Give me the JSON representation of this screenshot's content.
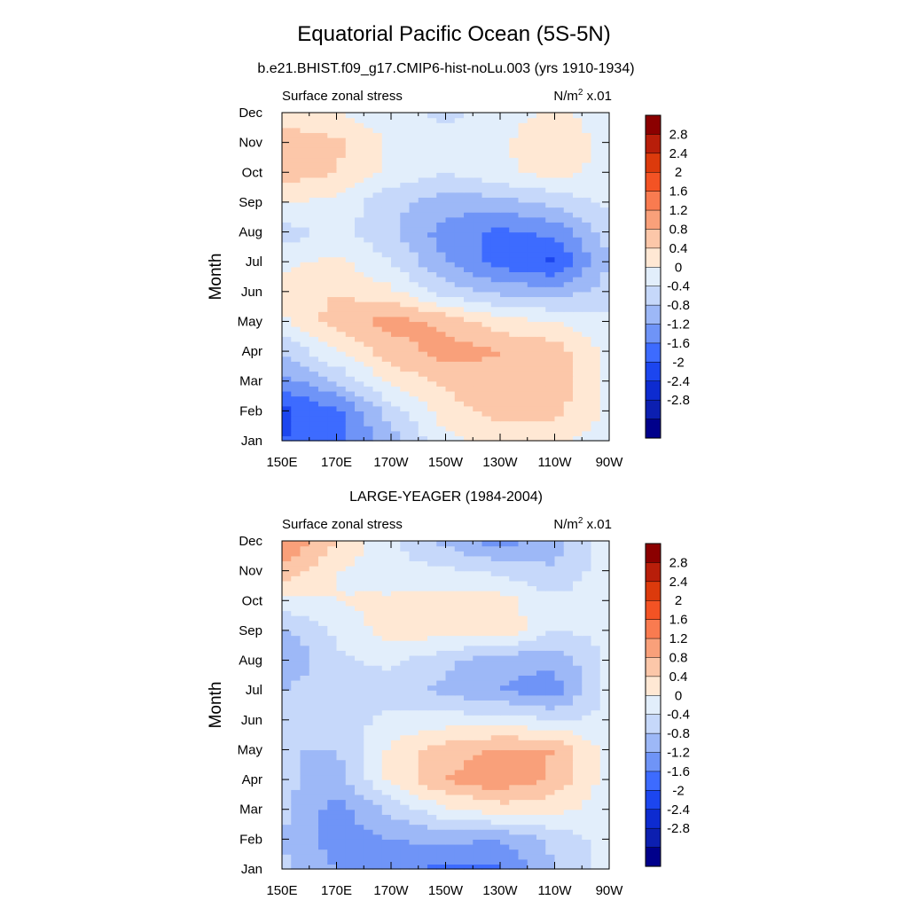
{
  "page": {
    "title": "Equatorial Pacific Ocean (5S-5N)"
  },
  "chart_data": [
    {
      "type": "heatmap",
      "title": "b.e21.BHIST.f09_g17.CMIP6-hist-noLu.003 (yrs 1910-1934)",
      "left_label": "Surface zonal stress",
      "units": "N/m",
      "units_sup": "2",
      "units_suffix": " x.01",
      "ylabel": "Month",
      "x_ticks": [
        "150E",
        "170E",
        "170W",
        "150W",
        "130W",
        "110W",
        "90W"
      ],
      "y_ticks": [
        "Jan",
        "Feb",
        "Mar",
        "Apr",
        "May",
        "Jun",
        "Jul",
        "Aug",
        "Sep",
        "Oct",
        "Nov",
        "Dec"
      ],
      "x": [
        150,
        170,
        190,
        210,
        230,
        250,
        270
      ],
      "y": [
        "Jan",
        "Feb",
        "Mar",
        "Apr",
        "May",
        "Jun",
        "Jul",
        "Aug",
        "Sep",
        "Oct",
        "Nov",
        "Dec"
      ],
      "values": [
        [
          -1.6,
          -1.4,
          -0.6,
          0.3,
          0.5,
          0.5,
          0.2
        ],
        [
          -1.7,
          -1.3,
          -0.2,
          0.6,
          1.0,
          0.9,
          0.3
        ],
        [
          -1.0,
          -0.4,
          0.5,
          0.9,
          1.1,
          1.1,
          0.3
        ],
        [
          -0.4,
          0.4,
          1.0,
          1.4,
          1.2,
          1.0,
          0.3
        ],
        [
          0.3,
          1.0,
          1.4,
          1.1,
          0.6,
          0.4,
          0.1
        ],
        [
          0.6,
          0.8,
          0.5,
          -0.2,
          -0.5,
          -0.6,
          -0.2
        ],
        [
          0.3,
          0.5,
          0.0,
          -0.8,
          -1.4,
          -1.7,
          -0.4
        ],
        [
          -0.2,
          0.1,
          -0.3,
          -1.0,
          -1.3,
          -1.1,
          -0.2
        ],
        [
          0.4,
          0.3,
          -0.3,
          -0.6,
          -0.6,
          -0.3,
          0.1
        ],
        [
          1.0,
          0.8,
          0.3,
          0.0,
          0.3,
          0.6,
          0.2
        ],
        [
          1.1,
          0.9,
          0.3,
          0.1,
          0.3,
          0.8,
          0.2
        ],
        [
          0.5,
          0.4,
          0.2,
          -0.1,
          0.2,
          0.5,
          0.2
        ]
      ]
    },
    {
      "type": "heatmap",
      "title": "LARGE-YEAGER (1984-2004)",
      "left_label": "Surface zonal stress",
      "units": "N/m",
      "units_sup": "2",
      "units_suffix": " x.01",
      "ylabel": "Month",
      "x_ticks": [
        "150E",
        "170E",
        "170W",
        "150W",
        "130W",
        "110W",
        "90W"
      ],
      "y_ticks": [
        "Jan",
        "Feb",
        "Mar",
        "Apr",
        "May",
        "Jun",
        "Jul",
        "Aug",
        "Sep",
        "Oct",
        "Nov",
        "Dec"
      ],
      "x": [
        150,
        170,
        190,
        210,
        230,
        250,
        270
      ],
      "y": [
        "Jan",
        "Feb",
        "Mar",
        "Apr",
        "May",
        "Jun",
        "Jul",
        "Aug",
        "Sep",
        "Oct",
        "Nov",
        "Dec"
      ],
      "values": [
        [
          -0.3,
          -0.8,
          -1.1,
          -1.3,
          -1.3,
          -0.4,
          0.2
        ],
        [
          -0.4,
          -1.0,
          -0.8,
          -0.7,
          -0.8,
          -0.3,
          0.2
        ],
        [
          -0.3,
          -1.0,
          -0.3,
          0.3,
          0.6,
          0.5,
          0.2
        ],
        [
          -0.3,
          -0.6,
          0.5,
          1.2,
          1.5,
          1.1,
          0.2
        ],
        [
          -0.4,
          -0.4,
          0.5,
          1.0,
          1.3,
          1.2,
          0.2
        ],
        [
          -0.4,
          -0.2,
          0.1,
          0.2,
          0.2,
          0.0,
          0.1
        ],
        [
          -0.4,
          -0.1,
          -0.2,
          -0.5,
          -0.8,
          -1.0,
          0.1
        ],
        [
          -0.8,
          -0.1,
          0.1,
          -0.3,
          -0.7,
          -0.7,
          0.1
        ],
        [
          -0.5,
          0.1,
          0.6,
          0.6,
          0.7,
          0.0,
          0.1
        ],
        [
          0.3,
          0.4,
          0.5,
          0.6,
          0.6,
          0.1,
          0.3
        ],
        [
          1.1,
          0.4,
          0.1,
          0.1,
          -0.1,
          -0.4,
          0.3
        ],
        [
          1.7,
          0.8,
          0.1,
          -0.5,
          -1.0,
          -0.5,
          0.2
        ]
      ]
    }
  ],
  "colorbar": {
    "labels": [
      "2.8",
      "2.4",
      "2",
      "1.6",
      "1.2",
      "0.8",
      "0.4",
      "0",
      "-0.4",
      "-0.8",
      "-1.2",
      "-1.6",
      "-2",
      "-2.4",
      "-2.8"
    ],
    "levels": [
      -2.8,
      -2.4,
      -2.0,
      -1.6,
      -1.2,
      -0.8,
      -0.4,
      0.0,
      0.4,
      0.8,
      1.2,
      1.6,
      2.0,
      2.4,
      2.8
    ],
    "colors": [
      "#00008B",
      "#0C1FB0",
      "#0D2BD0",
      "#1C46EF",
      "#3D6BFF",
      "#6F94F7",
      "#9DB8F7",
      "#C6D8FA",
      "#E2EEFB",
      "#FFE8D4",
      "#FCC7A9",
      "#F9A07A",
      "#F97B50",
      "#F35324",
      "#DC3A0C",
      "#B81E0A",
      "#8B0000"
    ]
  }
}
